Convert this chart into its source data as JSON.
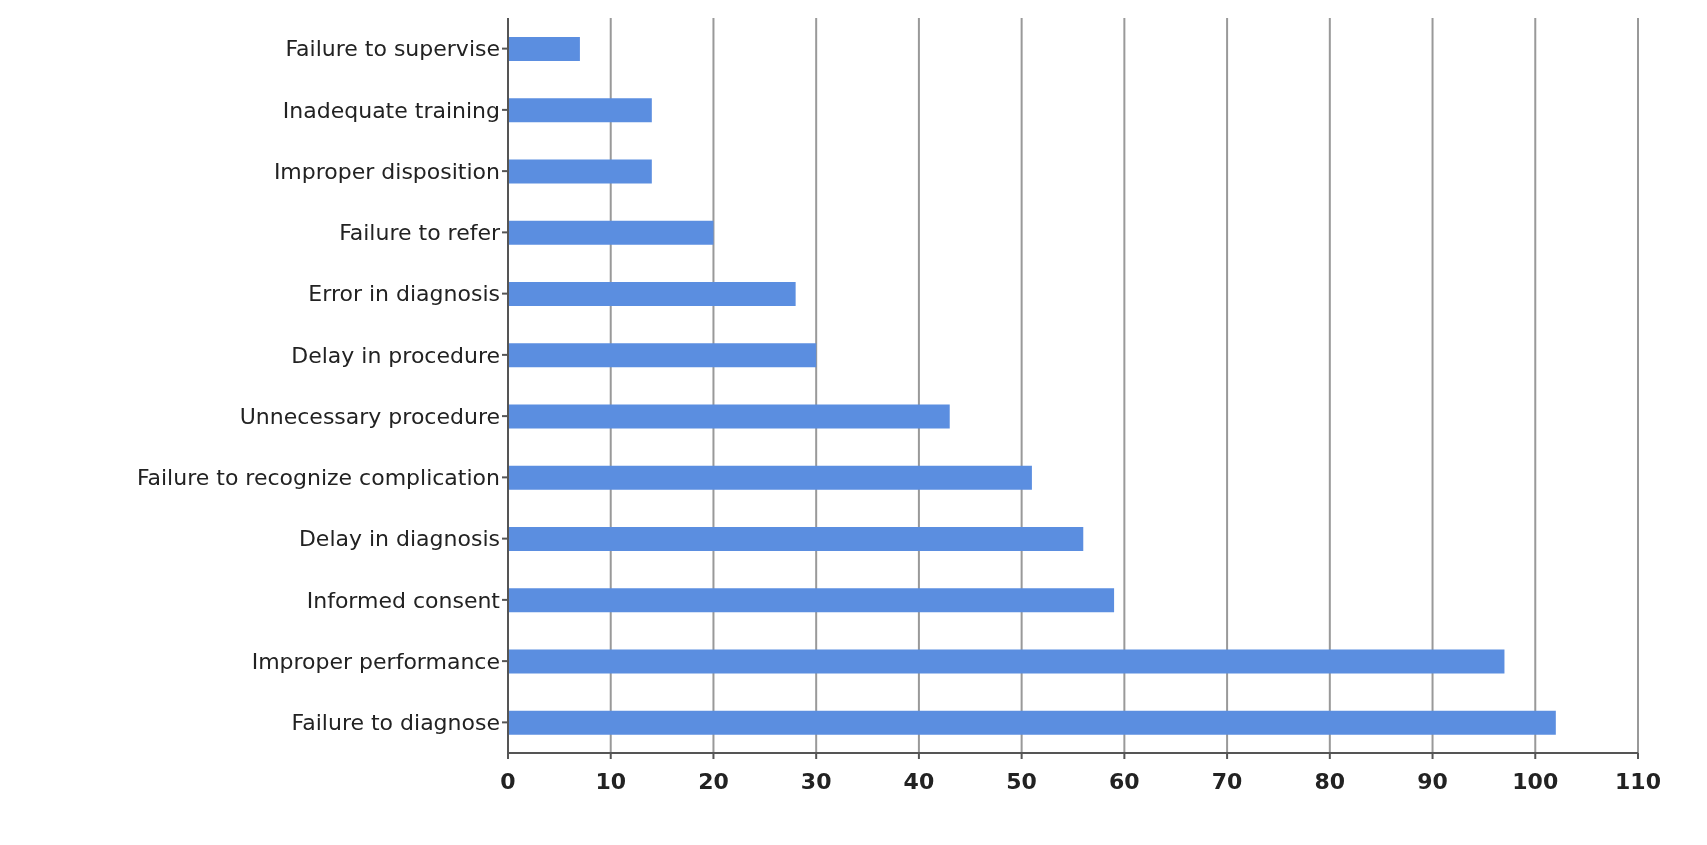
{
  "chart_data": {
    "type": "bar",
    "orientation": "horizontal",
    "categories": [
      "Failure to supervise",
      "Inadequate training",
      "Improper disposition",
      "Failure to refer",
      "Error in diagnosis",
      "Delay in procedure",
      "Unnecessary procedure",
      "Failure to recognize complication",
      "Delay in diagnosis",
      "Informed consent",
      "Improper performance",
      "Failure to diagnose"
    ],
    "values": [
      7,
      14,
      14,
      20,
      28,
      30,
      43,
      51,
      56,
      59,
      97,
      102
    ],
    "color": "#5b8ee0",
    "xlim": [
      0,
      110
    ],
    "xticks": [
      0,
      10,
      20,
      30,
      40,
      50,
      60,
      70,
      80,
      90,
      100,
      110
    ],
    "grid": "x",
    "legend": false
  }
}
